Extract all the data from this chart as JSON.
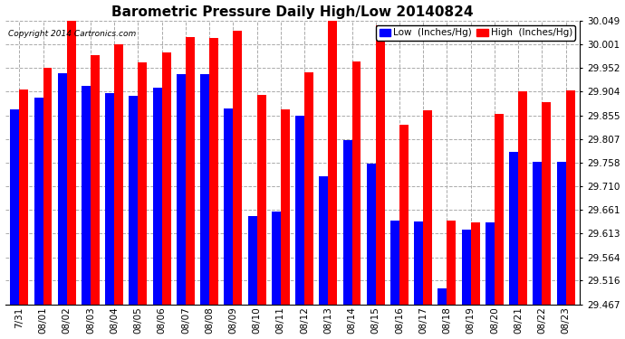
{
  "title": "Barometric Pressure Daily High/Low 20140824",
  "copyright": "Copyright 2014 Cartronics.com",
  "legend_low": "Low  (Inches/Hg)",
  "legend_high": "High  (Inches/Hg)",
  "dates": [
    "7/31",
    "08/01",
    "08/02",
    "08/03",
    "08/04",
    "08/05",
    "08/06",
    "08/07",
    "08/08",
    "08/09",
    "08/10",
    "08/11",
    "08/12",
    "08/13",
    "08/14",
    "08/15",
    "08/16",
    "08/17",
    "08/18",
    "08/19",
    "08/20",
    "08/21",
    "08/22",
    "08/23"
  ],
  "low_values": [
    29.868,
    29.892,
    29.942,
    29.916,
    29.9,
    29.895,
    29.912,
    29.94,
    29.94,
    29.869,
    29.648,
    29.657,
    29.855,
    29.731,
    29.805,
    29.756,
    29.64,
    29.637,
    29.5,
    29.62,
    29.636,
    29.78,
    29.76,
    29.76
  ],
  "high_values": [
    29.908,
    29.953,
    30.06,
    29.978,
    30.001,
    29.964,
    29.985,
    30.016,
    30.014,
    30.028,
    29.897,
    29.868,
    29.944,
    30.052,
    29.966,
    30.04,
    29.836,
    29.866,
    29.64,
    29.636,
    29.858,
    29.904,
    29.882,
    29.906
  ],
  "ylim_min": 29.467,
  "ylim_max": 30.049,
  "yticks": [
    29.467,
    29.516,
    29.564,
    29.613,
    29.661,
    29.71,
    29.758,
    29.807,
    29.855,
    29.904,
    29.952,
    30.001,
    30.049
  ],
  "bar_color_low": "#0000ff",
  "bar_color_high": "#ff0000",
  "background_color": "#ffffff",
  "grid_color": "#aaaaaa",
  "title_fontsize": 11,
  "tick_fontsize": 7.5,
  "legend_fontsize": 7.5,
  "bar_width": 0.38
}
